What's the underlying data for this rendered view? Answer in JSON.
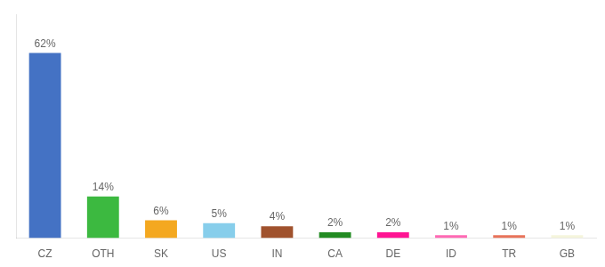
{
  "chart_data": {
    "type": "bar",
    "categories": [
      "CZ",
      "OTH",
      "SK",
      "US",
      "IN",
      "CA",
      "DE",
      "ID",
      "TR",
      "GB"
    ],
    "values": [
      62,
      14,
      6,
      5,
      4,
      2,
      2,
      1,
      1,
      1
    ],
    "value_labels": [
      "62%",
      "14%",
      "6%",
      "5%",
      "4%",
      "2%",
      "2%",
      "1%",
      "1%",
      "1%"
    ],
    "colors": [
      "#4472C4",
      "#3CB940",
      "#F4A820",
      "#87CEEB",
      "#A0522D",
      "#228B22",
      "#FF1493",
      "#FF69B4",
      "#E8735A",
      "#F5F5DC"
    ],
    "ylim": [
      0,
      75
    ],
    "grid": false,
    "data_labels": true,
    "tick_labels": "x"
  }
}
